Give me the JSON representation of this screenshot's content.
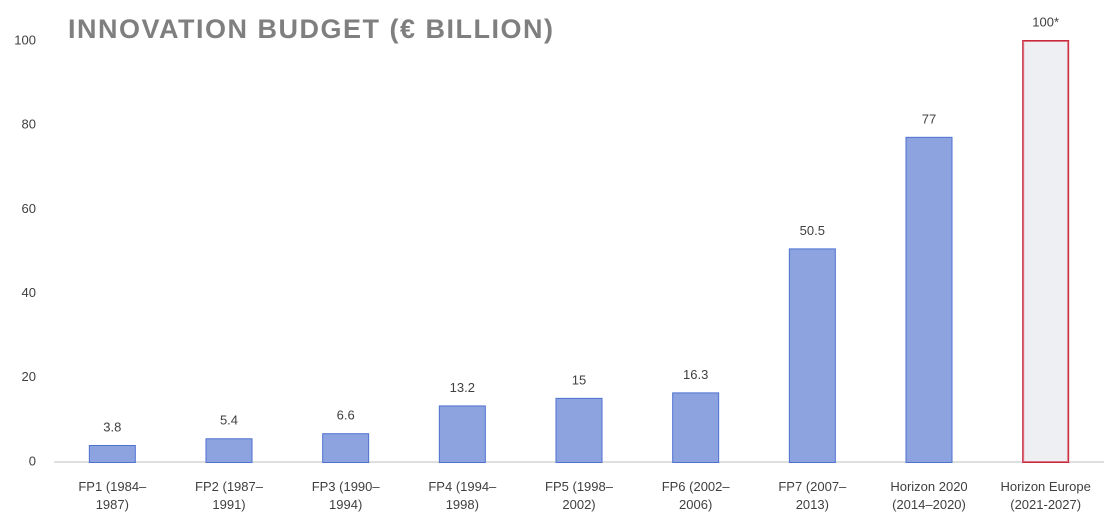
{
  "chart_data": {
    "type": "bar",
    "title": "INNOVATION BUDGET (€ BILLION)",
    "categories": [
      "FP1 (1984–1987)",
      "FP2 (1987–1991)",
      "FP3 (1990–1994)",
      "FP4 (1994–1998)",
      "FP5 (1998–2002)",
      "FP6 (2002–2006)",
      "FP7 (2007–2013)",
      "Horizon 2020 (2014–2020)",
      "Horizon Europe (2021-2027)"
    ],
    "values": [
      3.8,
      5.4,
      6.6,
      13.2,
      15,
      16.3,
      50.5,
      77,
      100
    ],
    "value_labels": [
      "3.8",
      "5.4",
      "6.6",
      "13.2",
      "15",
      "16.3",
      "50.5",
      "77",
      "100*"
    ],
    "colors": [
      "#4f72d0",
      "#4f72d0",
      "#4f72d0",
      "#4f72d0",
      "#4f72d0",
      "#4f72d0",
      "#4f72d0",
      "#4f72d0",
      "#e4e6ec"
    ],
    "edge_colors": [
      "#4f72d0",
      "#4f72d0",
      "#4f72d0",
      "#4f72d0",
      "#4f72d0",
      "#4f72d0",
      "#4f72d0",
      "#4f72d0",
      "#c8283c"
    ],
    "ylim": [
      0,
      100
    ],
    "yticks": [
      0,
      20,
      40,
      60,
      80,
      100
    ],
    "grid": false
  }
}
